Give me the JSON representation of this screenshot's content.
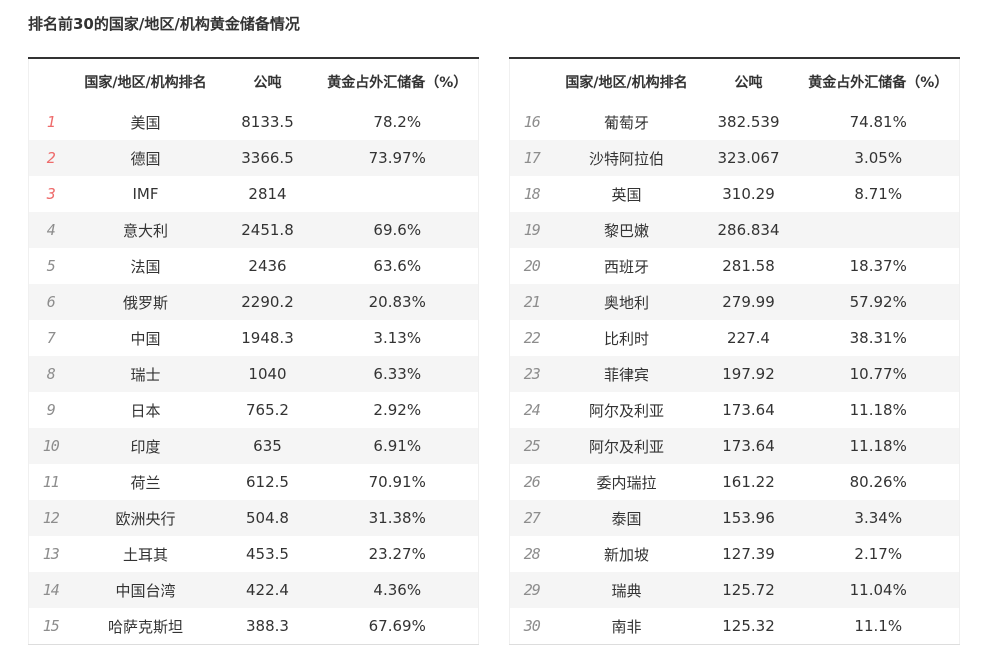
{
  "title": "排名前30的国家/地区/机构黄金储备情况",
  "table_headers": {
    "country": "国家/地区/机构排名",
    "tonnage": "公吨",
    "percent": "黄金占外汇储备（%）"
  },
  "colors": {
    "text": "#333333",
    "rank_top_red": "#ee6b6b",
    "rank_gray": "#8d8d8d",
    "stripe_row": "#f5f5f5",
    "table_top_border": "#333333"
  },
  "chart_data": {
    "type": "table",
    "title": "排名前30的国家/地区/机构黄金储备情况",
    "columns": [
      "国家/地区/机构排名",
      "公吨",
      "黄金占外汇储备（%）"
    ],
    "rows_left": [
      {
        "rank": "1",
        "name": "美国",
        "tons": "8133.5",
        "pct": "78.2%"
      },
      {
        "rank": "2",
        "name": "德国",
        "tons": "3366.5",
        "pct": "73.97%"
      },
      {
        "rank": "3",
        "name": "IMF",
        "tons": "2814",
        "pct": ""
      },
      {
        "rank": "4",
        "name": "意大利",
        "tons": "2451.8",
        "pct": "69.6%"
      },
      {
        "rank": "5",
        "name": "法国",
        "tons": "2436",
        "pct": "63.6%"
      },
      {
        "rank": "6",
        "name": "俄罗斯",
        "tons": "2290.2",
        "pct": "20.83%"
      },
      {
        "rank": "7",
        "name": "中国",
        "tons": "1948.3",
        "pct": "3.13%"
      },
      {
        "rank": "8",
        "name": "瑞士",
        "tons": "1040",
        "pct": "6.33%"
      },
      {
        "rank": "9",
        "name": "日本",
        "tons": "765.2",
        "pct": "2.92%"
      },
      {
        "rank": "10",
        "name": "印度",
        "tons": "635",
        "pct": "6.91%"
      },
      {
        "rank": "11",
        "name": "荷兰",
        "tons": "612.5",
        "pct": "70.91%"
      },
      {
        "rank": "12",
        "name": "欧洲央行",
        "tons": "504.8",
        "pct": "31.38%"
      },
      {
        "rank": "13",
        "name": "土耳其",
        "tons": "453.5",
        "pct": "23.27%"
      },
      {
        "rank": "14",
        "name": "中国台湾",
        "tons": "422.4",
        "pct": "4.36%"
      },
      {
        "rank": "15",
        "name": "哈萨克斯坦",
        "tons": "388.3",
        "pct": "67.69%"
      }
    ],
    "rows_right": [
      {
        "rank": "16",
        "name": "葡萄牙",
        "tons": "382.539",
        "pct": "74.81%"
      },
      {
        "rank": "17",
        "name": "沙特阿拉伯",
        "tons": "323.067",
        "pct": "3.05%"
      },
      {
        "rank": "18",
        "name": "英国",
        "tons": "310.29",
        "pct": "8.71%"
      },
      {
        "rank": "19",
        "name": "黎巴嫩",
        "tons": "286.834",
        "pct": ""
      },
      {
        "rank": "20",
        "name": "西班牙",
        "tons": "281.58",
        "pct": "18.37%"
      },
      {
        "rank": "21",
        "name": "奥地利",
        "tons": "279.99",
        "pct": "57.92%"
      },
      {
        "rank": "22",
        "name": "比利时",
        "tons": "227.4",
        "pct": "38.31%"
      },
      {
        "rank": "23",
        "name": "菲律宾",
        "tons": "197.92",
        "pct": "10.77%"
      },
      {
        "rank": "24",
        "name": "阿尔及利亚",
        "tons": "173.64",
        "pct": "11.18%"
      },
      {
        "rank": "25",
        "name": "阿尔及利亚",
        "tons": "173.64",
        "pct": "11.18%"
      },
      {
        "rank": "26",
        "name": "委内瑞拉",
        "tons": "161.22",
        "pct": "80.26%"
      },
      {
        "rank": "27",
        "name": "泰国",
        "tons": "153.96",
        "pct": "3.34%"
      },
      {
        "rank": "28",
        "name": "新加坡",
        "tons": "127.39",
        "pct": "2.17%"
      },
      {
        "rank": "29",
        "name": "瑞典",
        "tons": "125.72",
        "pct": "11.04%"
      },
      {
        "rank": "30",
        "name": "南非",
        "tons": "125.32",
        "pct": "11.1%"
      }
    ]
  }
}
